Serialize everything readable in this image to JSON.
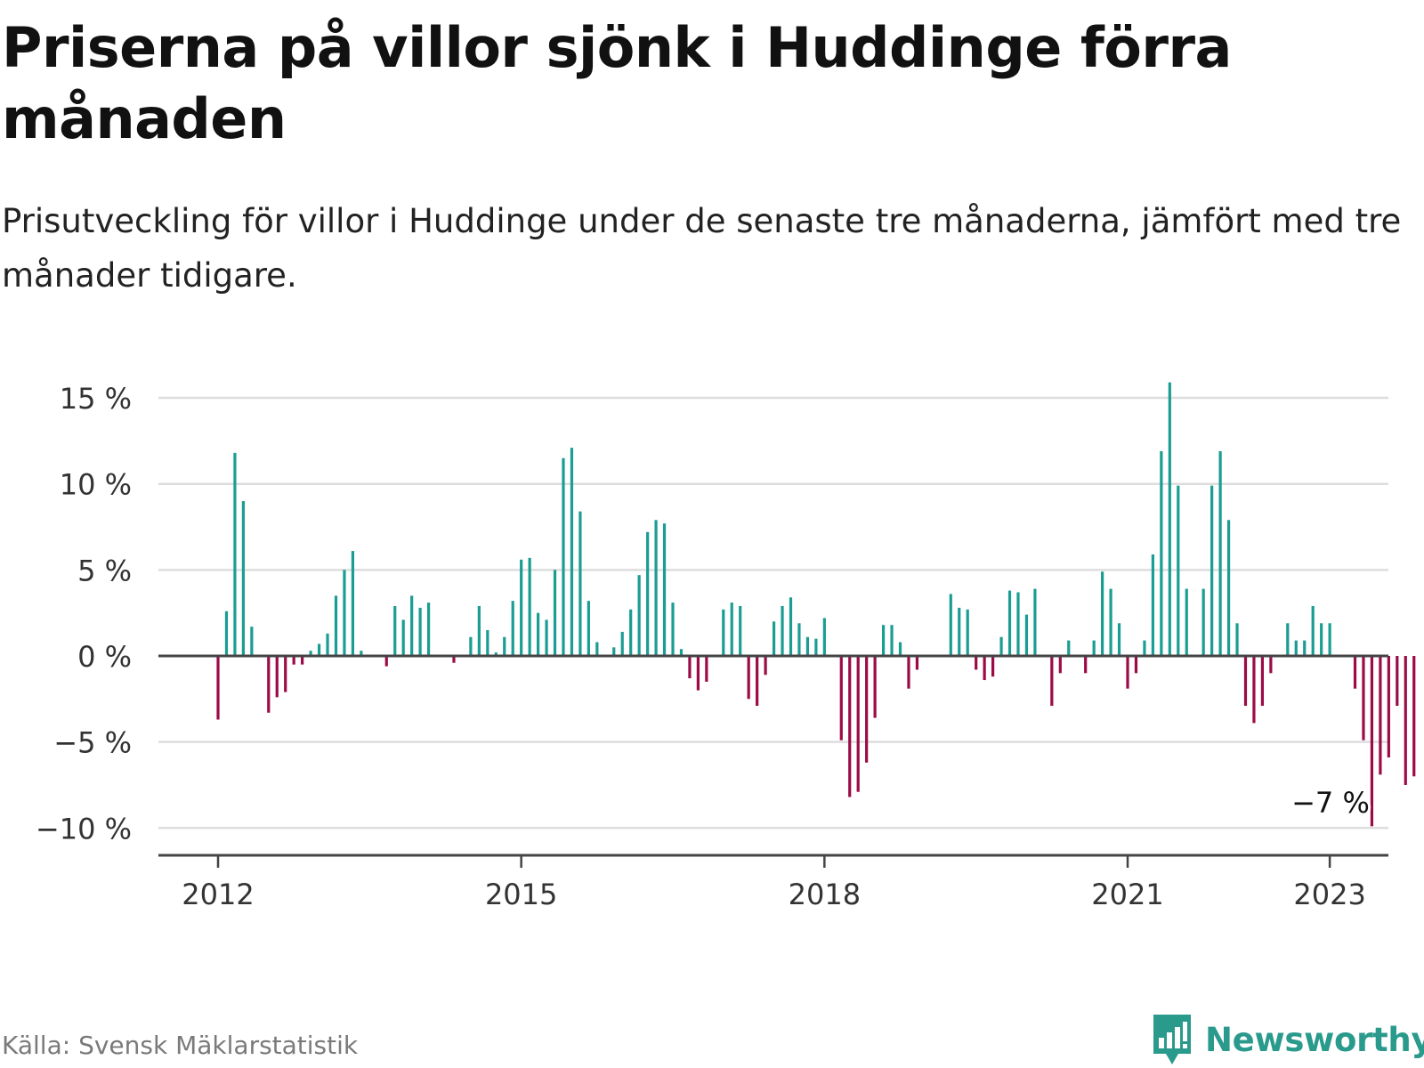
{
  "title": "Priserna på villor sjönk i Huddinge förra månaden",
  "subtitle": "Prisutveckling för villor i Huddinge under de senaste tre månaderna, jämfört med tre månader tidigare.",
  "source": "Källa: Svensk Mäklarstatistik",
  "brand": {
    "name": "Newsworthy",
    "icon": "bar-chart-speech-bubble-icon",
    "color": "#2a9a8c"
  },
  "colors": {
    "positive": "#1a9d93",
    "negative": "#9c0b46",
    "grid": "#dddddd",
    "zero_line": "#444444"
  },
  "chart_data": {
    "type": "bar",
    "ylim": [
      -11.5,
      15
    ],
    "y_ticks": [
      {
        "value": 15,
        "label": "15 %"
      },
      {
        "value": 10,
        "label": "10 %"
      },
      {
        "value": 5,
        "label": "5 %"
      },
      {
        "value": 0,
        "label": "0 %"
      },
      {
        "value": -5,
        "label": "−5 %"
      },
      {
        "value": -10,
        "label": "−10 %"
      }
    ],
    "x_ticks": [
      {
        "date": "2012-01",
        "label": "2012"
      },
      {
        "date": "2015-01",
        "label": "2015"
      },
      {
        "date": "2018-01",
        "label": "2018"
      },
      {
        "date": "2021-01",
        "label": "2021"
      },
      {
        "date": "2023-01",
        "label": "2023"
      }
    ],
    "grid": true,
    "annotation": {
      "text": "−7 %",
      "date": "2023-01"
    },
    "series": [
      {
        "start": "2012-01",
        "frequency": "monthly",
        "values": [
          -3.7,
          2.6,
          11.8,
          9.0,
          1.7,
          0,
          -3.3,
          -2.4,
          -2.1,
          -0.5,
          -0.5,
          0.3,
          0.7,
          1.3,
          3.5,
          5.0,
          6.1,
          0.3,
          0,
          0,
          -0.6,
          2.9,
          2.1,
          3.5,
          2.8,
          3.1,
          0,
          0,
          -0.4,
          0,
          1.1,
          2.9,
          1.5,
          0.2,
          1.1,
          3.2,
          5.6,
          5.7,
          2.5,
          2.1,
          5.0,
          11.5,
          12.1,
          8.4,
          3.2,
          0.8,
          0,
          0.5,
          1.4,
          2.7,
          4.7,
          7.2,
          7.9,
          7.7,
          3.1,
          0.4,
          -1.3,
          -2.0,
          -1.5,
          0,
          2.7,
          3.1,
          2.9,
          -2.5,
          -2.9,
          -1.1,
          2.0,
          2.9,
          3.4,
          1.9,
          1.1,
          1.0,
          2.2,
          0,
          -4.9,
          -8.2,
          -7.9,
          -6.2,
          -3.6,
          1.8,
          1.8,
          0.8,
          -1.9,
          -0.8,
          0,
          0,
          0,
          3.6,
          2.8,
          2.7,
          -0.8,
          -1.4,
          -1.2,
          1.1,
          3.8,
          3.7,
          2.4,
          3.9,
          0,
          -2.9,
          -1.0,
          0.9,
          0,
          -1.0,
          0.9,
          4.9,
          3.9,
          1.9,
          -1.9,
          -1.0,
          0.9,
          5.9,
          11.9,
          15.9,
          9.9,
          3.9,
          0,
          3.9,
          9.9,
          11.9,
          7.9,
          1.9,
          -2.9,
          -3.9,
          -2.9,
          -1.0,
          0,
          1.9,
          0.9,
          0.9,
          2.9,
          1.9,
          1.9,
          0,
          0,
          -1.9,
          -4.9,
          -9.9,
          -6.9,
          -5.9,
          -2.9,
          -7.5,
          -7.0
        ]
      }
    ]
  }
}
